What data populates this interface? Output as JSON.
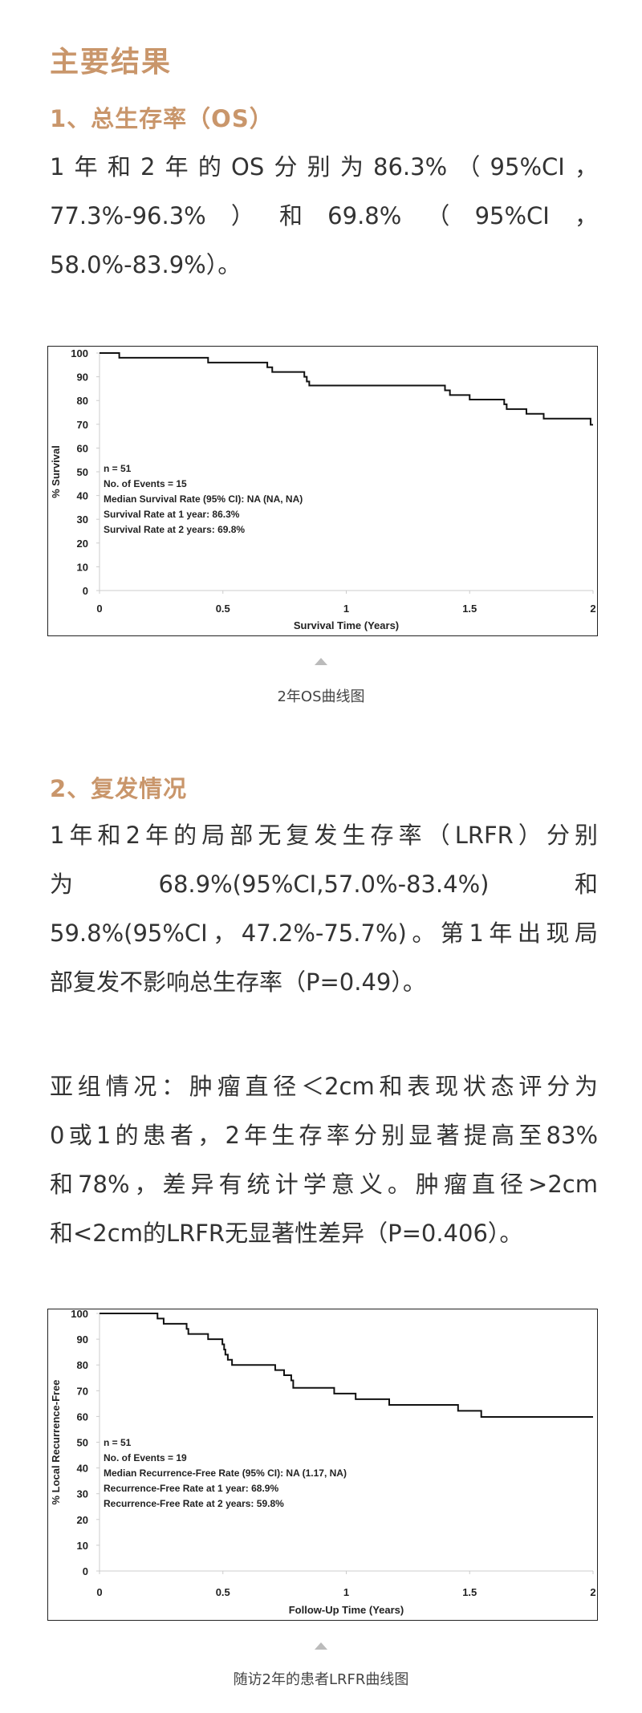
{
  "title": "主要结果",
  "section1": {
    "heading": "1、总生存率（OS）",
    "lines": [
      "1年和2年的OS分别为86.3%（95%CI，",
      "77.3%-96.3%）和69.8%（95%CI，",
      "58.0%-83.9%）。"
    ],
    "caption": "2年OS曲线图"
  },
  "section2": {
    "heading": "2、复发情况",
    "lines": [
      "1年和2年的局部无复发生存率（LRFR）分别",
      "为68.9%(95%CI,57.0%-83.4%)和",
      "59.8%(95%CI，47.2%-75.7%)。第1年出现局",
      "部复发不影响总生存率（P=0.49）。"
    ],
    "sub_lines": [
      "亚组情况：肿瘤直径＜2cm和表现状态评分为",
      "0或1的患者，2年生存率分别显著提高至83%",
      "和78%，差异有统计学意义。肿瘤直径>2cm",
      "和<2cm的LRFR无显著性差异（P=0.406）。"
    ],
    "caption": "随访2年的患者LRFR曲线图"
  },
  "colors": {
    "heading": "#c9966b",
    "text": "#333333",
    "line": "#111111"
  },
  "chart_data": [
    {
      "type": "line",
      "step": true,
      "xlabel": "Survival Time (Years)",
      "ylabel": "% Survival",
      "xlim": [
        0,
        2
      ],
      "ylim": [
        0,
        100
      ],
      "xticks": [
        "0",
        "0.5",
        "1",
        "1.5",
        "2"
      ],
      "yticks": [
        "0",
        "10",
        "20",
        "30",
        "40",
        "50",
        "60",
        "70",
        "80",
        "90",
        "100"
      ],
      "grid": false,
      "annotations": [
        "n = 51",
        "No. of Events = 15",
        "Median Survival Rate (95% CI): NA (NA, NA)",
        "Survival Rate at 1 year: 86.3%",
        "Survival Rate at 2 years: 69.8%"
      ],
      "x": [
        0,
        0.08,
        0.44,
        0.68,
        0.7,
        0.83,
        0.84,
        0.85,
        1.4,
        1.42,
        1.5,
        1.64,
        1.65,
        1.73,
        1.8,
        1.99,
        2.0
      ],
      "y": [
        100,
        98,
        96,
        94,
        92,
        90,
        88,
        86.3,
        84.3,
        82.3,
        80.4,
        78.4,
        76.4,
        74.4,
        72.4,
        69.8,
        69.8
      ]
    },
    {
      "type": "line",
      "step": true,
      "xlabel": "Follow-Up Time (Years)",
      "ylabel": "% Local Recurrence-Free",
      "xlim": [
        0,
        2
      ],
      "ylim": [
        0,
        100
      ],
      "xticks": [
        "0",
        "0.5",
        "1",
        "1.5",
        "2"
      ],
      "yticks": [
        "0",
        "10",
        "20",
        "30",
        "40",
        "50",
        "60",
        "70",
        "80",
        "90",
        "100"
      ],
      "grid": false,
      "annotations": [
        "n = 51",
        "No. of Events = 19",
        "Median Recurrence-Free Rate (95% CI): NA (1.17, NA)",
        "Recurrence-Free Rate at 1 year: 68.9%",
        "Recurrence-Free Rate at 2 years: 59.8%"
      ],
      "x": [
        0,
        0.235,
        0.26,
        0.353,
        0.36,
        0.44,
        0.498,
        0.505,
        0.51,
        0.52,
        0.537,
        0.712,
        0.748,
        0.777,
        0.785,
        0.951,
        1.038,
        1.174,
        1.453,
        1.547,
        2.0
      ],
      "y": [
        100,
        98,
        96,
        94,
        92,
        90,
        88,
        86,
        84,
        82,
        80,
        78,
        76,
        74,
        71.1,
        68.9,
        66.7,
        64.5,
        62.2,
        59.8,
        59.8
      ]
    }
  ]
}
